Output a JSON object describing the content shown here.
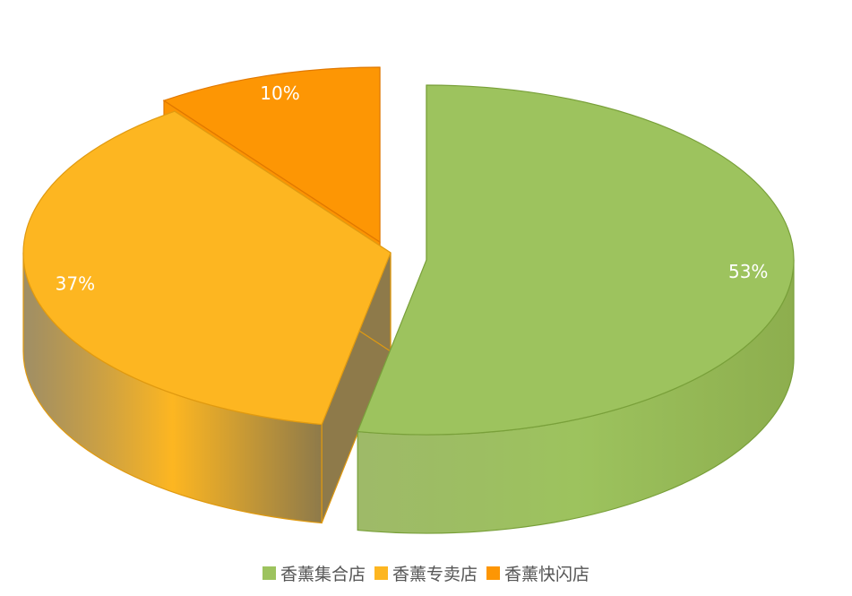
{
  "chart_data": {
    "type": "pie",
    "style": "3d-exploded",
    "categories": [
      "香薰集合店",
      "香薰专卖店",
      "香薰快闪店"
    ],
    "values": [
      53,
      37,
      10
    ],
    "labels": [
      "53%",
      "37%",
      "10%"
    ],
    "colors": [
      "#9DC35E",
      "#FDB621",
      "#FD9604"
    ],
    "side_colors": [
      "#8DAE4E",
      "#8E7A4A",
      "#FB9403"
    ],
    "edge_colors": [
      "#79A03A",
      "#E09A10",
      "#E07800"
    ],
    "legend_position": "bottom"
  }
}
